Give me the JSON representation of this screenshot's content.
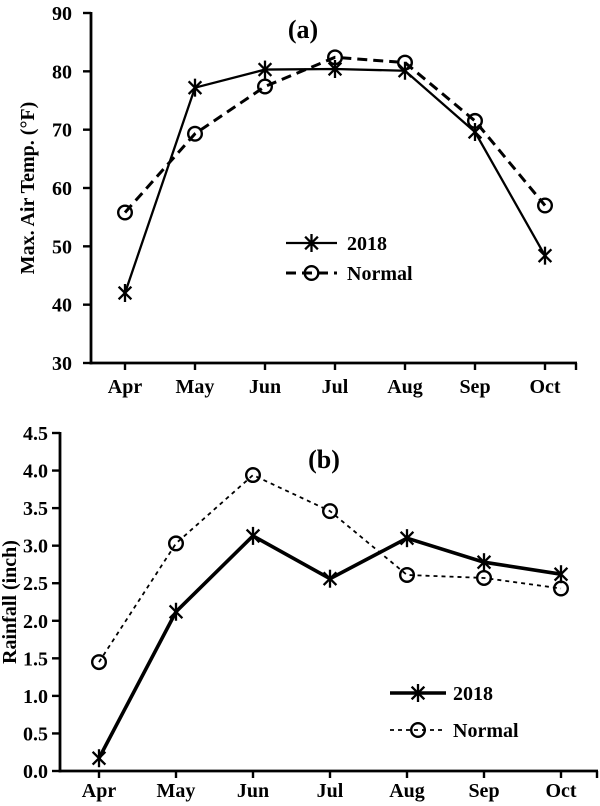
{
  "figure": {
    "background": "#ffffff",
    "ink": "#000000"
  },
  "chart_data": [
    {
      "type": "line",
      "panel_label": "(a)",
      "title": "",
      "ylabel": "Max. Air Temp. (°F)",
      "xlabel": "",
      "categories": [
        "Apr",
        "May",
        "Jun",
        "Jul",
        "Aug",
        "Sep",
        "Oct"
      ],
      "ylim": [
        30,
        90
      ],
      "yticks": [
        "30",
        "40",
        "50",
        "60",
        "70",
        "80",
        "90"
      ],
      "grid": false,
      "legend_position": "inside-center-right",
      "series": [
        {
          "name": "2018",
          "marker": "asterisk",
          "line_style": "solid",
          "line_width": 2.3,
          "values": [
            42.0,
            77.2,
            80.3,
            80.4,
            80.1,
            69.6,
            48.4
          ]
        },
        {
          "name": "Normal",
          "marker": "circle",
          "line_style": "dashed",
          "line_width": 3,
          "values": [
            55.8,
            69.3,
            77.4,
            82.4,
            81.5,
            71.5,
            57.0
          ]
        }
      ]
    },
    {
      "type": "line",
      "panel_label": "(b)",
      "title": "",
      "ylabel": "Rainfall (inch)",
      "xlabel": "",
      "categories": [
        "Apr",
        "May",
        "Jun",
        "Jul",
        "Aug",
        "Sep",
        "Oct"
      ],
      "ylim": [
        0,
        4.5
      ],
      "yticks": [
        "0.0",
        "0.5",
        "1.0",
        "1.5",
        "2.0",
        "2.5",
        "3.0",
        "3.5",
        "4.0",
        "4.5"
      ],
      "grid": false,
      "legend_position": "inside-bottom-right",
      "series": [
        {
          "name": "2018",
          "marker": "asterisk",
          "line_style": "solid",
          "line_width": 3.6,
          "values": [
            0.17,
            2.12,
            3.13,
            2.56,
            3.1,
            2.78,
            2.62
          ]
        },
        {
          "name": "Normal",
          "marker": "circle",
          "line_style": "dotted",
          "line_width": 1.8,
          "values": [
            1.45,
            3.03,
            3.94,
            3.46,
            2.61,
            2.57,
            2.43
          ]
        }
      ]
    }
  ]
}
